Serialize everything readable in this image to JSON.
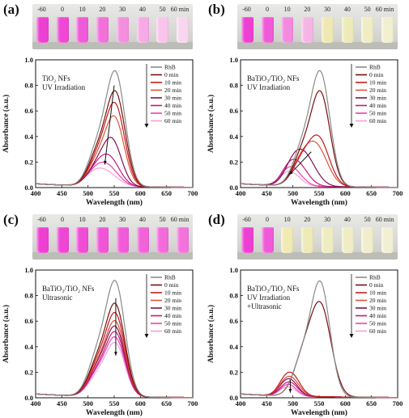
{
  "panels": [
    {
      "letter": "(a)",
      "photo": {
        "labels": [
          "-60",
          "0",
          "10",
          "20",
          "30",
          "40",
          "50",
          "60 min"
        ],
        "vial_colors": [
          "#ee3fd3",
          "#ef48d5",
          "#f05ad8",
          "#f270da",
          "#f48fdf",
          "#f6abe6",
          "#f8c4ec",
          "#f9d6f0"
        ]
      },
      "annotation": [
        "TiO₂ NFs",
        "UV Irradiation"
      ],
      "chart_data": {
        "type": "line",
        "xlabel": "Wavelength (nm)",
        "ylabel": "Absorbance (a.u.)",
        "xlim": [
          400,
          700
        ],
        "ylim": [
          0.0,
          1.0
        ],
        "xticks": [
          400,
          450,
          500,
          550,
          600,
          650,
          700
        ],
        "yticks": [
          0.0,
          0.2,
          0.4,
          0.6,
          0.8,
          1.0
        ],
        "legend_position": "top-right",
        "series": [
          {
            "name": "RhB",
            "color": "#8a8a8a",
            "peaks": [
              [
                553,
                0.86,
                18
              ],
              [
                518,
                0.28,
                18
              ]
            ],
            "baseline": 0.03
          },
          {
            "name": "0 min",
            "color": "#7a0f0f",
            "peaks": [
              [
                553,
                0.71,
                18
              ],
              [
                518,
                0.24,
                18
              ]
            ],
            "baseline": 0.03
          },
          {
            "name": "10 min",
            "color": "#c41a1a",
            "peaks": [
              [
                552,
                0.62,
                18
              ],
              [
                518,
                0.21,
                18
              ]
            ],
            "baseline": 0.03
          },
          {
            "name": "20 min",
            "color": "#e0533a",
            "peaks": [
              [
                551,
                0.52,
                18
              ],
              [
                517,
                0.18,
                18
              ]
            ],
            "baseline": 0.03
          },
          {
            "name": "30 min",
            "color": "#80124f",
            "peaks": [
              [
                546,
                0.35,
                18
              ],
              [
                515,
                0.13,
                18
              ]
            ],
            "baseline": 0.03
          },
          {
            "name": "40 min",
            "color": "#c21880",
            "peaks": [
              [
                540,
                0.22,
                20
              ],
              [
                512,
                0.09,
                18
              ]
            ],
            "baseline": 0.03
          },
          {
            "name": "50 min",
            "color": "#ee3fae",
            "peaks": [
              [
                535,
                0.16,
                22
              ],
              [
                510,
                0.06,
                18
              ]
            ],
            "baseline": 0.03
          },
          {
            "name": "60 min",
            "color": "#f7a1d6",
            "peaks": [
              [
                530,
                0.12,
                24
              ],
              [
                507,
                0.04,
                18
              ]
            ],
            "baseline": 0.03
          }
        ],
        "arrow": {
          "x1": 550,
          "y1": 0.8,
          "x2": 532,
          "y2": 0.18
        }
      }
    },
    {
      "letter": "(b)",
      "photo": {
        "labels": [
          "-60",
          "0",
          "10",
          "20",
          "30",
          "40",
          "50",
          "60 min"
        ],
        "vial_colors": [
          "#ee3fd3",
          "#f05ad8",
          "#f38ade",
          "#f6b6e5",
          "#efe8b2",
          "#eeeab8",
          "#f0edc4",
          "#f1efcf"
        ]
      },
      "annotation": [
        "BaTiO₃/TiO₂ NFs",
        "UV Irradiation"
      ],
      "chart_data": {
        "type": "line",
        "xlabel": "Wavelength (nm)",
        "ylabel": "Absorbance (a.u.)",
        "xlim": [
          400,
          700
        ],
        "ylim": [
          0.0,
          1.0
        ],
        "xticks": [
          400,
          450,
          500,
          550,
          600,
          650,
          700
        ],
        "yticks": [
          0.0,
          0.2,
          0.4,
          0.6,
          0.8,
          1.0
        ],
        "legend_position": "top-right",
        "series": [
          {
            "name": "RhB",
            "color": "#8a8a8a",
            "peaks": [
              [
                553,
                0.86,
                18
              ],
              [
                518,
                0.28,
                18
              ]
            ],
            "baseline": 0.03
          },
          {
            "name": "0 min",
            "color": "#7a0f0f",
            "peaks": [
              [
                553,
                0.71,
                18
              ],
              [
                518,
                0.24,
                18
              ]
            ],
            "baseline": 0.03
          },
          {
            "name": "10 min",
            "color": "#c41a1a",
            "peaks": [
              [
                549,
                0.37,
                20
              ],
              [
                515,
                0.16,
                18
              ]
            ],
            "baseline": 0.03
          },
          {
            "name": "20 min",
            "color": "#e0533a",
            "peaks": [
              [
                543,
                0.32,
                22
              ],
              [
                512,
                0.12,
                18
              ]
            ],
            "baseline": 0.03
          },
          {
            "name": "30 min",
            "color": "#80124f",
            "peaks": [
              [
                520,
                0.25,
                22
              ],
              [
                498,
                0.08,
                16
              ]
            ],
            "baseline": 0.03
          },
          {
            "name": "40 min",
            "color": "#c21880",
            "peaks": [
              [
                507,
                0.18,
                20
              ],
              [
                490,
                0.05,
                14
              ]
            ],
            "baseline": 0.03
          },
          {
            "name": "50 min",
            "color": "#ee3fae",
            "peaks": [
              [
                500,
                0.12,
                18
              ],
              [
                488,
                0.04,
                14
              ]
            ],
            "baseline": 0.03
          },
          {
            "name": "60 min",
            "color": "#f7a1d6",
            "peaks": [
              [
                497,
                0.09,
                18
              ],
              [
                486,
                0.03,
                14
              ]
            ],
            "baseline": 0.03
          }
        ],
        "arrow": {
          "x1": 535,
          "y1": 0.28,
          "x2": 493,
          "y2": 0.1
        }
      }
    },
    {
      "letter": "(c)",
      "photo": {
        "labels": [
          "-60",
          "0",
          "10",
          "20",
          "30",
          "40",
          "50",
          "60 min"
        ],
        "vial_colors": [
          "#ee3fd3",
          "#ef46d5",
          "#f04dd6",
          "#f054d7",
          "#f15bd8",
          "#f262d9",
          "#f36adb",
          "#f372dc"
        ]
      },
      "annotation": [
        "BaTiO₃/TiO₂ NFs",
        "Ultrasonic"
      ],
      "chart_data": {
        "type": "line",
        "xlabel": "Wavelength (nm)",
        "ylabel": "Absorbance (a.u.)",
        "xlim": [
          400,
          700
        ],
        "ylim": [
          0.0,
          1.0
        ],
        "xticks": [
          400,
          450,
          500,
          550,
          600,
          650,
          700
        ],
        "yticks": [
          0.0,
          0.2,
          0.4,
          0.6,
          0.8,
          1.0
        ],
        "legend_position": "top-right",
        "series": [
          {
            "name": "RhB",
            "color": "#8a8a8a",
            "peaks": [
              [
                553,
                0.86,
                18
              ],
              [
                518,
                0.3,
                18
              ]
            ],
            "baseline": 0.03
          },
          {
            "name": "0 min",
            "color": "#7a0f0f",
            "peaks": [
              [
                553,
                0.69,
                18
              ],
              [
                518,
                0.25,
                18
              ]
            ],
            "baseline": 0.03
          },
          {
            "name": "10 min",
            "color": "#c41a1a",
            "peaks": [
              [
                553,
                0.62,
                18
              ],
              [
                518,
                0.23,
                18
              ]
            ],
            "baseline": 0.03
          },
          {
            "name": "20 min",
            "color": "#e0533a",
            "peaks": [
              [
                553,
                0.56,
                18
              ],
              [
                518,
                0.21,
                18
              ]
            ],
            "baseline": 0.03
          },
          {
            "name": "30 min",
            "color": "#80124f",
            "peaks": [
              [
                553,
                0.52,
                18
              ],
              [
                518,
                0.2,
                18
              ]
            ],
            "baseline": 0.03
          },
          {
            "name": "40 min",
            "color": "#c21880",
            "peaks": [
              [
                553,
                0.48,
                18
              ],
              [
                518,
                0.18,
                18
              ]
            ],
            "baseline": 0.03
          },
          {
            "name": "50 min",
            "color": "#ee3fae",
            "peaks": [
              [
                553,
                0.44,
                18
              ],
              [
                518,
                0.17,
                18
              ]
            ],
            "baseline": 0.03
          },
          {
            "name": "60 min",
            "color": "#f7a1d6",
            "peaks": [
              [
                553,
                0.4,
                18
              ],
              [
                518,
                0.15,
                18
              ]
            ],
            "baseline": 0.03
          }
        ],
        "arrow": {
          "x1": 553,
          "y1": 0.78,
          "x2": 553,
          "y2": 0.33
        }
      }
    },
    {
      "letter": "(d)",
      "photo": {
        "labels": [
          "-60",
          "0",
          "10",
          "20",
          "30",
          "40",
          "50",
          "60 min"
        ],
        "vial_colors": [
          "#ee3fd3",
          "#f05ad8",
          "#f0eab4",
          "#eeeab8",
          "#efecbf",
          "#f0edc6",
          "#f1eecd",
          "#f2f0d4"
        ]
      },
      "annotation": [
        "BaTiO₃/TiO₂ NFs",
        "UV Irradiation",
        "+Ultrasonic"
      ],
      "chart_data": {
        "type": "line",
        "xlabel": "Wavelength (nm)",
        "ylabel": "Absorbance (a.u.)",
        "xlim": [
          400,
          700
        ],
        "ylim": [
          0.0,
          1.0
        ],
        "xticks": [
          400,
          450,
          500,
          550,
          600,
          650,
          700
        ],
        "yticks": [
          0.0,
          0.2,
          0.4,
          0.6,
          0.8,
          1.0
        ],
        "legend_position": "top-right",
        "series": [
          {
            "name": "RhB",
            "color": "#8a8a8a",
            "peaks": [
              [
                553,
                0.86,
                18
              ],
              [
                518,
                0.28,
                18
              ]
            ],
            "baseline": 0.03
          },
          {
            "name": "0 min",
            "color": "#7a0f0f",
            "peaks": [
              [
                553,
                0.7,
                20
              ],
              [
                518,
                0.26,
                18
              ]
            ],
            "baseline": 0.03
          },
          {
            "name": "10 min",
            "color": "#c41a1a",
            "peaks": [
              [
                497,
                0.17,
                16
              ],
              [
                480,
                0.04,
                12
              ]
            ],
            "baseline": 0.03
          },
          {
            "name": "20 min",
            "color": "#e0533a",
            "peaks": [
              [
                496,
                0.14,
                16
              ],
              [
                480,
                0.03,
                12
              ]
            ],
            "baseline": 0.03
          },
          {
            "name": "30 min",
            "color": "#80124f",
            "peaks": [
              [
                495,
                0.12,
                15
              ],
              [
                480,
                0.03,
                12
              ]
            ],
            "baseline": 0.03
          },
          {
            "name": "40 min",
            "color": "#c21880",
            "peaks": [
              [
                495,
                0.1,
                15
              ],
              [
                480,
                0.02,
                12
              ]
            ],
            "baseline": 0.03
          },
          {
            "name": "50 min",
            "color": "#ee3fae",
            "peaks": [
              [
                494,
                0.08,
                14
              ],
              [
                480,
                0.02,
                12
              ]
            ],
            "baseline": 0.03
          },
          {
            "name": "60 min",
            "color": "#f7a1d6",
            "peaks": [
              [
                494,
                0.06,
                14
              ],
              [
                480,
                0.02,
                12
              ]
            ],
            "baseline": 0.03
          }
        ],
        "arrow": {
          "x1": 495,
          "y1": 0.14,
          "x2": 495,
          "y2": 0.04
        }
      }
    }
  ]
}
